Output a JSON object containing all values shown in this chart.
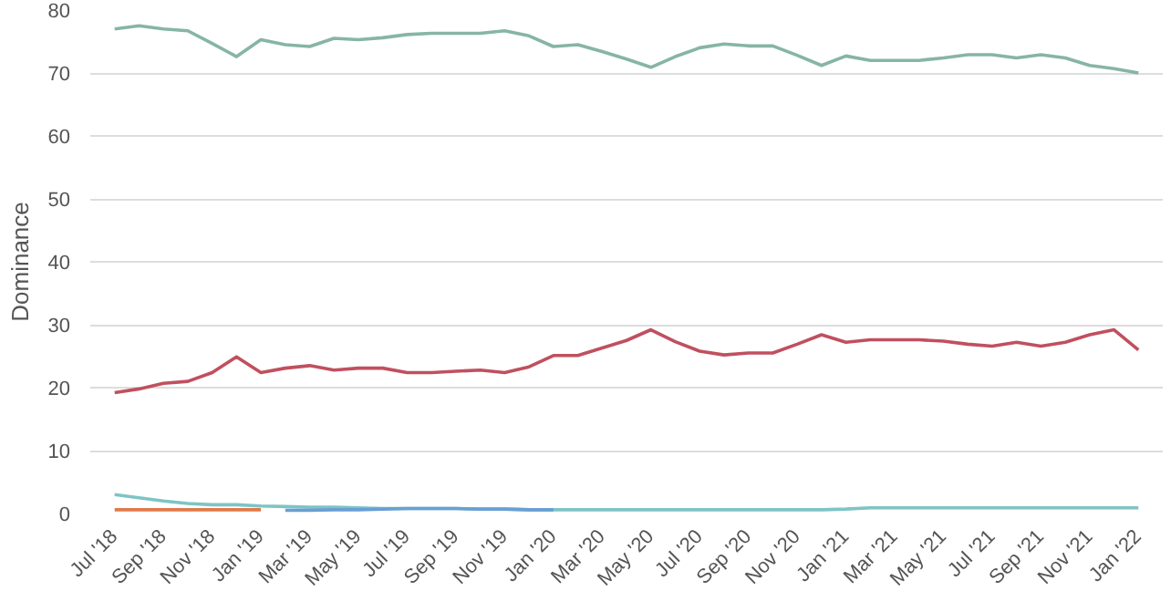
{
  "chart_data": {
    "type": "line",
    "ylabel": "Dominance",
    "categories": [
      "Jul '18",
      null,
      "Sep '18",
      null,
      "Nov '18",
      null,
      "Jan '19",
      null,
      "Mar '19",
      null,
      "May '19",
      null,
      "Jul '19",
      null,
      "Sep '19",
      null,
      "Nov '19",
      null,
      "Jan '20",
      null,
      "Mar '20",
      null,
      "May '20",
      null,
      "Jul '20",
      null,
      "Sep '20",
      null,
      "Nov '20",
      null,
      "Jan '21",
      null,
      "Mar '21",
      null,
      "May '21",
      null,
      "Jul '21",
      null,
      "Sep '21",
      null,
      "Nov '21",
      null,
      "Jan '22"
    ],
    "series": [
      {
        "color": "#86b5a5",
        "values": [
          77.0,
          77.5,
          77.0,
          76.7,
          74.7,
          72.6,
          75.3,
          74.5,
          74.2,
          75.5,
          75.3,
          75.6,
          76.1,
          76.3,
          76.3,
          76.3,
          76.7,
          75.9,
          74.2,
          74.5,
          73.4,
          72.2,
          70.9,
          72.6,
          74.0,
          74.6,
          74.3,
          74.3,
          72.8,
          71.2,
          72.7,
          72.0,
          72.0,
          72.0,
          72.4,
          72.9,
          72.9,
          72.4,
          72.9,
          72.4,
          71.2,
          70.7,
          70.0
        ]
      },
      {
        "color": "#c0505f",
        "values": [
          19.2,
          19.8,
          20.7,
          21.0,
          22.4,
          24.9,
          22.4,
          23.1,
          23.5,
          22.8,
          23.1,
          23.1,
          22.4,
          22.4,
          22.6,
          22.8,
          22.4,
          23.3,
          25.1,
          25.1,
          26.3,
          27.5,
          29.2,
          27.3,
          25.8,
          25.2,
          25.5,
          25.5,
          26.9,
          28.4,
          27.2,
          27.6,
          27.6,
          27.6,
          27.4,
          26.9,
          26.6,
          27.2,
          26.6,
          27.2,
          28.4,
          29.2,
          26.0
        ]
      },
      {
        "color": "#7fc4c4",
        "values": [
          3.0,
          2.5,
          2.0,
          1.6,
          1.4,
          1.4,
          1.2,
          1.1,
          1.0,
          1.0,
          0.9,
          0.8,
          0.8,
          0.8,
          0.8,
          0.7,
          0.7,
          0.6,
          0.6,
          0.6,
          0.6,
          0.6,
          0.6,
          0.6,
          0.6,
          0.6,
          0.6,
          0.6,
          0.6,
          0.6,
          0.7,
          0.9,
          0.9,
          0.9,
          0.9,
          0.9,
          0.9,
          0.9,
          0.9,
          0.9,
          0.9,
          0.9,
          0.9
        ]
      },
      {
        "color": "#e07a4a",
        "values": [
          0.6,
          0.6,
          0.6,
          0.6,
          0.6,
          0.6,
          0.6,
          null,
          null,
          null,
          null,
          null,
          null,
          null,
          null,
          null,
          null,
          null,
          null,
          null,
          null,
          null,
          null,
          null,
          null,
          null,
          null,
          null,
          null,
          null,
          null,
          null,
          null,
          null,
          null,
          null,
          null,
          null,
          null,
          null,
          null,
          null,
          null
        ]
      },
      {
        "color": "#6a9fd4",
        "values": [
          null,
          null,
          null,
          null,
          null,
          null,
          null,
          0.5,
          0.5,
          0.6,
          0.6,
          0.7,
          0.8,
          0.8,
          0.8,
          0.7,
          0.7,
          0.6,
          0.6,
          null,
          null,
          null,
          null,
          null,
          null,
          null,
          null,
          null,
          null,
          null,
          null,
          null,
          null,
          null,
          null,
          null,
          null,
          null,
          null,
          null,
          null,
          null,
          null
        ]
      }
    ],
    "ylim": [
      0,
      80
    ],
    "yticks": [
      0,
      10,
      20,
      30,
      40,
      50,
      60,
      70,
      80
    ],
    "grid": "y",
    "marker": "none",
    "line_style": "solid"
  }
}
